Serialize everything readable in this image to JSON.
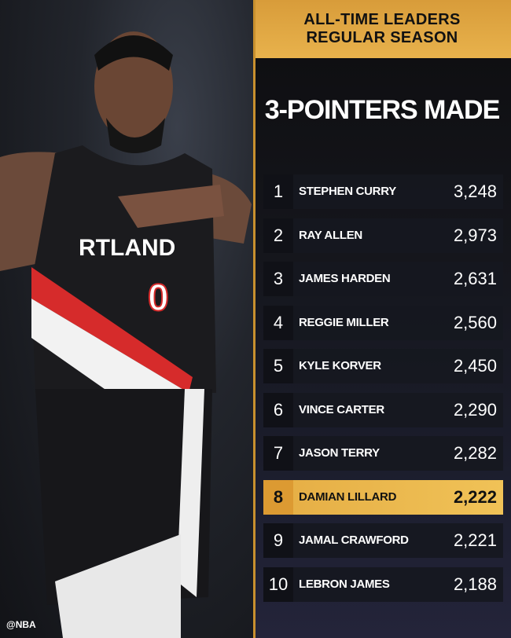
{
  "header": {
    "line1": "ALL-TIME LEADERS",
    "line2": "REGULAR SEASON"
  },
  "title": "3-POINTERS MADE",
  "jersey": {
    "text": "RTLAND",
    "number": "0"
  },
  "watermark": "@NBA",
  "colors": {
    "gold": "#e8b24c",
    "highlight": "#f0c257",
    "panel": "#15161c"
  },
  "leaders": [
    {
      "rank": "1",
      "name": "STEPHEN CURRY",
      "value": "3,248"
    },
    {
      "rank": "2",
      "name": "RAY ALLEN",
      "value": "2,973"
    },
    {
      "rank": "3",
      "name": "JAMES HARDEN",
      "value": "2,631"
    },
    {
      "rank": "4",
      "name": "REGGIE MILLER",
      "value": "2,560"
    },
    {
      "rank": "5",
      "name": "KYLE KORVER",
      "value": "2,450"
    },
    {
      "rank": "6",
      "name": "VINCE CARTER",
      "value": "2,290"
    },
    {
      "rank": "7",
      "name": "JASON TERRY",
      "value": "2,282"
    },
    {
      "rank": "8",
      "name": "DAMIAN LILLARD",
      "value": "2,222",
      "highlighted": true
    },
    {
      "rank": "9",
      "name": "JAMAL CRAWFORD",
      "value": "2,221"
    },
    {
      "rank": "10",
      "name": "LEBRON JAMES",
      "value": "2,188"
    }
  ]
}
